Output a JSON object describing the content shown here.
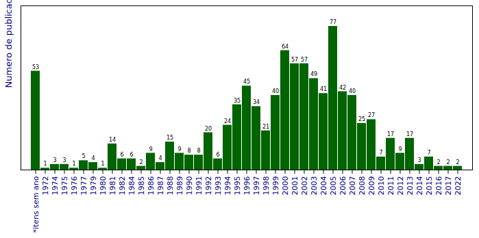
{
  "chart_data": {
    "type": "bar",
    "y_label": "Numero de publicacoes",
    "categories": [
      "*itens sem ano",
      "1972",
      "1974",
      "1975",
      "1976",
      "1977",
      "1979",
      "1980",
      "1981",
      "1982",
      "1984",
      "1985",
      "1986",
      "1987",
      "1988",
      "1989",
      "1990",
      "1991",
      "1992",
      "1993",
      "1994",
      "1995",
      "1996",
      "1997",
      "1998",
      "1999",
      "2000",
      "2001",
      "2002",
      "2003",
      "2004",
      "2005",
      "2006",
      "2007",
      "2008",
      "2009",
      "2010",
      "2011",
      "2012",
      "2013",
      "2014",
      "2015",
      "2016",
      "2017",
      "2022"
    ],
    "values": [
      53,
      1,
      3,
      3,
      1,
      5,
      4,
      1,
      14,
      6,
      6,
      2,
      9,
      4,
      15,
      9,
      8,
      8,
      20,
      6,
      24,
      35,
      45,
      34,
      21,
      40,
      64,
      57,
      57,
      49,
      41,
      77,
      42,
      40,
      25,
      27,
      7,
      17,
      9,
      17,
      3,
      7,
      2,
      2,
      2
    ],
    "color": "#006400",
    "ylim": [
      0,
      88
    ],
    "yticks": [],
    "data_labels": true,
    "tick_labels": "x",
    "grid": false
  }
}
